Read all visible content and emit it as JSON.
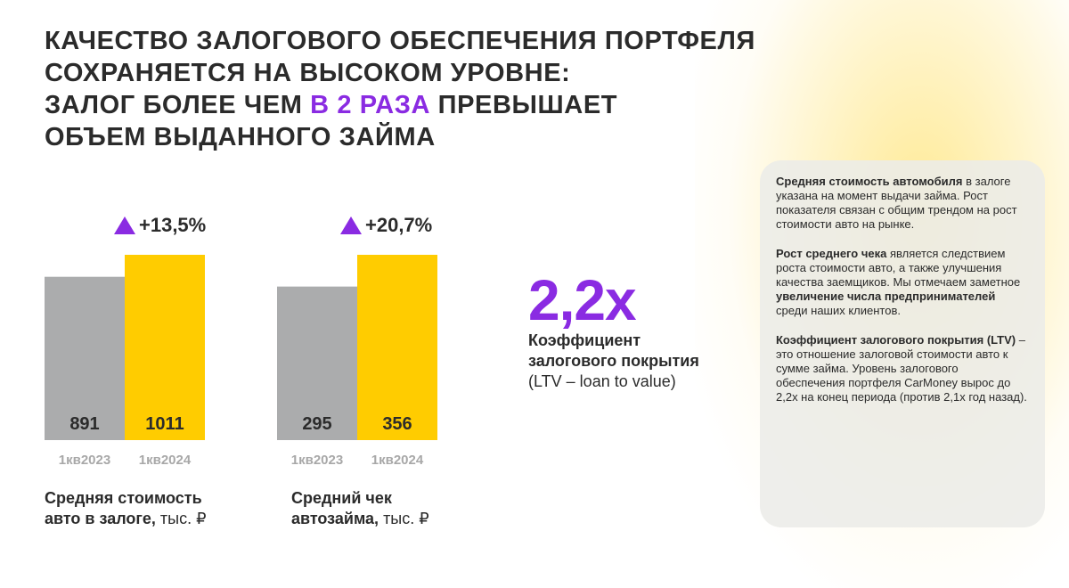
{
  "title": {
    "line1": "Качество залогового обеспечения портфеля",
    "line2": "сохраняется на высоком уровне:",
    "line3_pre": "залог более чем ",
    "line3_highlight": "в 2 раза",
    "line3_post": " превышает",
    "line4": "объем выданного займа"
  },
  "colors": {
    "accent": "#8a2be2",
    "bar_prev": "#abacad",
    "bar_curr": "#ffcc00",
    "text": "#2b2b2b",
    "tick": "#a8a8a8"
  },
  "icons": {
    "growth": "triangle-up-icon"
  },
  "chart_data": [
    {
      "type": "bar",
      "title": "Средняя стоимость авто в залоге, тыс. ₽",
      "categories": [
        "1кв2023",
        "1кв2024"
      ],
      "values": [
        891,
        1011
      ],
      "value_labels": [
        "891",
        "1011"
      ],
      "growth_label": "+13,5%",
      "caption_bold": "Средняя стоимость",
      "caption_bold2": "авто в залоге,",
      "caption_unit": " тыс. ₽",
      "ylim": [
        0,
        1011
      ]
    },
    {
      "type": "bar",
      "title": "Средний чек автозайма, тыс. ₽",
      "categories": [
        "1кв2023",
        "1кв2024"
      ],
      "values": [
        295,
        356
      ],
      "value_labels": [
        "295",
        "356"
      ],
      "growth_label": "+20,7%",
      "caption_bold": "Средний чек",
      "caption_bold2": "автозайма,",
      "caption_unit": " тыс. ₽",
      "ylim": [
        0,
        356
      ]
    }
  ],
  "ltv": {
    "value": "2,2x",
    "label_line1": "Коэффициент",
    "label_line2": "залогового покрытия",
    "sub": "(LTV – loan to value)"
  },
  "panel": {
    "p1_bold": "Средняя стоимость автомобиля",
    "p1_text": " в залоге указана на момент выдачи займа. Рост показателя связан с общим трендом на рост стоимости авто на рынке.",
    "p2_bold": "Рост среднего чека",
    "p2_text": " является следствием роста стоимости авто, а также улучшения качества заемщиков. Мы отмечаем заметное ",
    "p2_bold2": "увеличение числа предпринимателей",
    "p2_text2": " среди наших клиентов.",
    "p3_bold": "Коэффициент залогового покрытия (LTV)",
    "p3_text": " – это отношение залоговой стоимости авто к сумме займа. Уровень залогового обеспечения портфеля CarMoney вырос до 2,2x на конец периода (против 2,1x год назад)."
  }
}
